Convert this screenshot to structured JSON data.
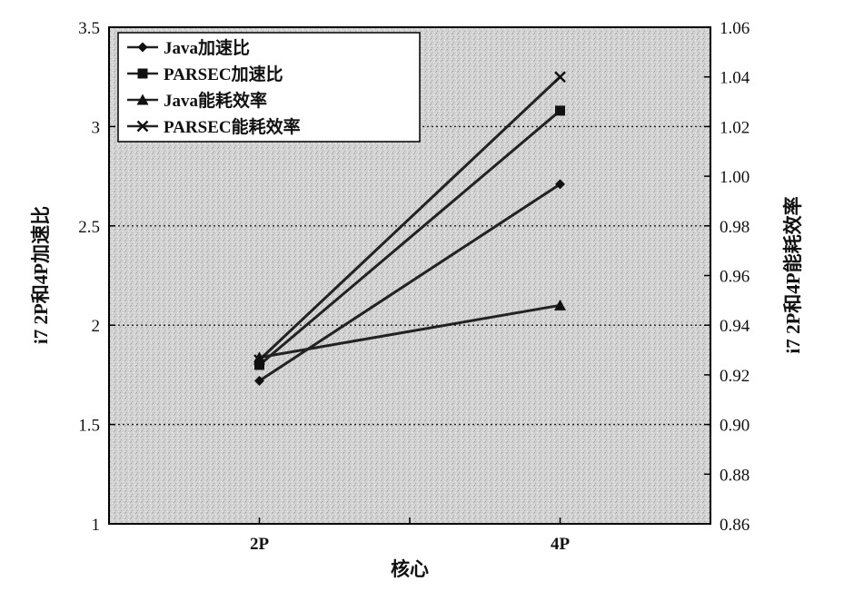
{
  "chart_data": {
    "type": "line",
    "title": "",
    "xlabel": "核心",
    "ylabel_left": "i7 2P和4P加速比",
    "ylabel_right": "i7 2P和4P能耗效率",
    "categories": [
      "2P",
      "4P"
    ],
    "x_tick_labels": [
      "2P",
      "4P"
    ],
    "y_left_range": [
      1,
      3.5
    ],
    "y_left_ticks": [
      "1",
      "1.5",
      "2",
      "2.5",
      "3",
      "3.5"
    ],
    "y_right_range": [
      0.86,
      1.06
    ],
    "y_right_ticks": [
      "0.86",
      "0.88",
      "0.90",
      "0.92",
      "0.94",
      "0.96",
      "0.98",
      "1.00",
      "1.02",
      "1.04",
      "1.06"
    ],
    "grid": "horizontal dotted at left-axis ticks",
    "legend_position": "top-left",
    "series": [
      {
        "name": "Java加速比",
        "axis": "left",
        "marker": "diamond",
        "values": [
          1.72,
          2.71
        ]
      },
      {
        "name": "PARSEC加速比",
        "axis": "left",
        "marker": "square",
        "values": [
          1.8,
          3.08
        ]
      },
      {
        "name": "Java能耗效率",
        "axis": "right",
        "marker": "triangle",
        "values": [
          0.927,
          0.948
        ]
      },
      {
        "name": "PARSEC能耗效率",
        "axis": "right",
        "marker": "x",
        "values": [
          0.926,
          1.04
        ]
      }
    ]
  }
}
